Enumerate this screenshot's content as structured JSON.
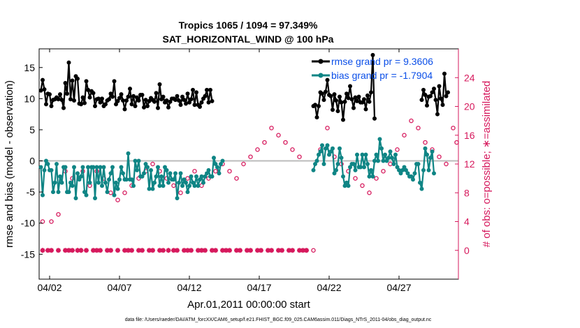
{
  "chart_data": {
    "type": "line",
    "title_line1": "Tropics 1065 / 1094 = 97.349%",
    "title_line2": "SAT_HORIZONTAL_WIND @ 100 hPa",
    "xlabel": "Apr.01,2011 00:00:00 start",
    "ylabel_left": "rmse and bias (model - observation)",
    "ylabel_right": "# of obs: o=possible; ∗=assimilated",
    "footer": "data file: /Users/raeder/DAI/ATM_forcXX/CAM6_setup/f.e21.FHIST_BGC.f09_025.CAM6assim.011/Diags_NTrS_2011-04/obs_diag_output.nc",
    "x_ticks": [
      2,
      7,
      12,
      17,
      22,
      27
    ],
    "x_tick_labels": [
      "04/02",
      "04/07",
      "04/12",
      "04/17",
      "04/22",
      "04/27"
    ],
    "xlim": [
      1.25,
      31.25
    ],
    "ylim_left": [
      -19,
      18
    ],
    "y_ticks_left": [
      -15,
      -10,
      -5,
      0,
      5,
      10,
      15
    ],
    "y_tick_labels_left": [
      "-15",
      "-10",
      "-5",
      "0",
      "5",
      "10",
      "15"
    ],
    "ylim_right": [
      -4,
      28
    ],
    "y_ticks_right": [
      0,
      4,
      8,
      12,
      16,
      20,
      24
    ],
    "y_tick_labels_right": [
      "0",
      "4",
      "8",
      "12",
      "16",
      "20",
      "24"
    ],
    "legend": [
      {
        "label": "rmse grand pr = 9.3606",
        "color": "#000000"
      },
      {
        "label": "bias grand pr = -1.7904",
        "color": "#0f8585"
      }
    ],
    "colors": {
      "rmse": "#000000",
      "bias": "#0f8585",
      "obs": "#d6185c",
      "zero_line": "#bbbbbb"
    },
    "series": [
      {
        "name": "rmse",
        "segments": [
          {
            "start": 1.375,
            "values": [
              11.3,
              13.0,
              11.5,
              9.1,
              10.8,
              10.7,
              8.8,
              9.8,
              9.9,
              10.2,
              9.9,
              10.7,
              9.8,
              8.5,
              12.5,
              10.8,
              15.8,
              9.9,
              12.9,
              9.7,
              13.6,
              13.2,
              9.2,
              9.1,
              10.2,
              9.3,
              12.8,
              11.4,
              10.2,
              11.2,
              10.9,
              8.8,
              9.9,
              10.0,
              9.4,
              10.0,
              8.8,
              9.1,
              9.7,
              9.9,
              10.8,
              10.3,
              12.8,
              9.1,
              9.6,
              10.1,
              10.7,
              9.7,
              8.3,
              9.7,
              10.3,
              11.6,
              9.1,
              10.4,
              8.8,
              10.2,
              9.7,
              10.6,
              10.6,
              8.6,
              9.8,
              8.8,
              9.6,
              10.1,
              9.8,
              9.5,
              10.9,
              8.5,
              12.3,
              9.9,
              10.3,
              9.4,
              9.7,
              8.6,
              9.5,
              10.0,
              10.0,
              9.8,
              10.4,
              9.7,
              9.0,
              10.3,
              9.8,
              9.2,
              10.8,
              9.4,
              9.9,
              11.4,
              9.0,
              11.0,
              9.0,
              8.7,
              9.4,
              10.0,
              10.4,
              11.4,
              9.4,
              11.4,
              9.6
            ]
          },
          {
            "start": 20.875,
            "values": [
              8.8,
              9.0,
              7.0,
              8.8,
              11.0,
              10.8,
              9.8,
              11.1,
              13.0,
              10.6,
              10.4,
              8.2,
              10.7,
              9.7,
              8.0,
              10.3,
              9.4,
              6.6,
              9.5,
              10.8,
              10.1,
              12.0,
              9.9,
              8.5,
              10.2,
              9.6,
              10.3,
              9.4,
              9.4,
              9.9,
              8.3,
              10.5,
              9.5,
              11.0,
              17.0,
              6.8
            ]
          },
          {
            "start": 28.625,
            "values": [
              9.8,
              11.4,
              10.6,
              8.9,
              10.3,
              10.4,
              11.0,
              11.6,
              9.8,
              7.5,
              12.0,
              10.0,
              9.0,
              14.0,
              10.4,
              11.0
            ]
          }
        ]
      },
      {
        "name": "bias",
        "segments": [
          {
            "start": 1.375,
            "values": [
              -1.0,
              -5.5,
              -1.5,
              0.0,
              -0.5,
              -1.5,
              -1.5,
              -5.0,
              -3.5,
              -0.5,
              -5.0,
              -2.5,
              -3.5,
              -1.0,
              -1.0,
              -5.0,
              -5.0,
              -3.5,
              -4.0,
              -1.0,
              -6.0,
              -2.0,
              -3.0,
              -2.5,
              -1.0,
              -5.0,
              -5.5,
              -1.0,
              -3.5,
              -1.0,
              -1.0,
              -6.0,
              -1.0,
              -3.5,
              -1.0,
              -4.0,
              -1.0,
              -3.5,
              -5.0,
              -3.0,
              -2.0,
              -1.0,
              -5.5,
              -3.5,
              -4.5,
              -3.0,
              -1.0,
              -2.0,
              -3.0,
              -3.0,
              1.2,
              -3.0,
              -3.0,
              -4.0,
              0.0,
              -1.5,
              0.0,
              -2.5,
              -2.5,
              -2.0,
              -0.5,
              -1.0,
              -4.5,
              -1.5,
              -4.5,
              -3.5,
              -2.5,
              -1.0,
              -4.0,
              -2.5,
              -4.0,
              -1.0,
              -1.5,
              -3.5,
              -2.0,
              -3.0,
              -3.0,
              -2.0,
              -6.0,
              -3.5,
              -2.0,
              -4.0,
              -3.0,
              -3.5,
              -5.0,
              -4.0,
              -2.5,
              -3.5,
              -4.0,
              -2.5,
              -4.0,
              -3.0,
              -2.5,
              -3.5,
              -2.5,
              -2.0,
              -1.5,
              -2.5,
              -2.5,
              0.5,
              -0.5,
              -1.0,
              -2.0,
              -0.5,
              0.0
            ]
          },
          {
            "start": 20.875,
            "values": [
              -1.5,
              -0.5,
              0.0,
              1.0,
              1.5,
              2.5,
              -0.5,
              2.0,
              2.5,
              1.0,
              1.5,
              2.0,
              -2.0,
              -1.5,
              -0.5,
              2.0,
              0.5,
              -2.5,
              -4.0,
              -3.5,
              -4.0,
              -1.0,
              -0.5,
              -0.5,
              -1.5,
              1.0,
              -1.0,
              -1.0,
              1.0,
              -1.0,
              1.0,
              -0.5,
              -2.5,
              -1.5,
              -2.5,
              0.0,
              1.0,
              0.0,
              3.5,
              2.0,
              0.0,
              1.0,
              0.0,
              0.5,
              1.5,
              0.5,
              -0.5,
              1.0,
              -1.0,
              -1.5,
              -2.0,
              -1.5,
              -1.0,
              -1.5,
              -2.0,
              -2.5,
              -2.5,
              -3.0,
              -2.0,
              -0.5,
              -0.5,
              -3.5,
              -4.5,
              -1.5,
              2.0,
              1.0,
              -1.5,
              0.5,
              1.5,
              -2.0
            ]
          }
        ]
      },
      {
        "name": "obs_assimilated",
        "marker": "*",
        "points": [
          [
            1.5,
            0
          ],
          [
            1.875,
            0
          ],
          [
            2.125,
            0
          ],
          [
            2.625,
            0
          ],
          [
            3.125,
            0
          ],
          [
            3.375,
            0
          ],
          [
            3.625,
            0
          ],
          [
            4.0,
            0
          ],
          [
            4.25,
            0
          ],
          [
            4.625,
            0
          ],
          [
            5.125,
            0
          ],
          [
            5.375,
            0
          ],
          [
            5.625,
            0
          ],
          [
            6.125,
            0
          ],
          [
            6.375,
            0
          ],
          [
            6.875,
            0
          ],
          [
            7.375,
            0
          ],
          [
            7.625,
            0
          ],
          [
            7.875,
            0
          ],
          [
            8.375,
            0
          ],
          [
            8.625,
            0
          ],
          [
            9.125,
            0
          ],
          [
            9.375,
            0
          ],
          [
            9.875,
            0
          ],
          [
            10.125,
            0
          ],
          [
            10.5,
            0
          ],
          [
            10.875,
            0
          ],
          [
            11.125,
            0
          ],
          [
            11.625,
            0
          ],
          [
            11.875,
            0
          ],
          [
            12.125,
            0
          ],
          [
            12.625,
            0
          ],
          [
            12.875,
            0
          ],
          [
            13.125,
            0
          ],
          [
            13.625,
            0
          ],
          [
            13.875,
            0
          ],
          [
            14.375,
            0
          ],
          [
            14.625,
            0
          ],
          [
            14.875,
            0
          ],
          [
            15.375,
            0
          ],
          [
            15.625,
            0
          ],
          [
            16.125,
            0
          ],
          [
            16.375,
            0
          ],
          [
            16.875,
            0
          ],
          [
            17.125,
            0
          ],
          [
            17.625,
            0
          ],
          [
            17.875,
            0
          ],
          [
            18.375,
            0
          ],
          [
            18.625,
            0
          ],
          [
            19.125,
            0
          ],
          [
            19.375,
            0
          ],
          [
            19.875,
            0
          ],
          [
            20.125,
            0
          ],
          [
            20.375,
            0
          ]
        ]
      },
      {
        "name": "obs_possible",
        "marker": "o",
        "points": [
          [
            1.5,
            4
          ],
          [
            2.125,
            4
          ],
          [
            2.625,
            5
          ],
          [
            3.125,
            11
          ],
          [
            3.625,
            10
          ],
          [
            4.375,
            11
          ],
          [
            4.875,
            9
          ],
          [
            5.375,
            11
          ],
          [
            5.875,
            10
          ],
          [
            6.375,
            8
          ],
          [
            6.875,
            7
          ],
          [
            7.375,
            8
          ],
          [
            7.875,
            9
          ],
          [
            8.375,
            10
          ],
          [
            8.875,
            11
          ],
          [
            9.375,
            12
          ],
          [
            9.875,
            11
          ],
          [
            10.375,
            10
          ],
          [
            10.875,
            9
          ],
          [
            11.375,
            8
          ],
          [
            11.875,
            10
          ],
          [
            12.375,
            11
          ],
          [
            12.875,
            9
          ],
          [
            13.375,
            10
          ],
          [
            13.875,
            11
          ],
          [
            14.375,
            12
          ],
          [
            14.875,
            11
          ],
          [
            15.375,
            10
          ],
          [
            15.875,
            12
          ],
          [
            16.375,
            13
          ],
          [
            16.875,
            14
          ],
          [
            17.375,
            15
          ],
          [
            17.875,
            17
          ],
          [
            18.375,
            16
          ],
          [
            18.875,
            15
          ],
          [
            19.375,
            14
          ],
          [
            19.875,
            13
          ],
          [
            20.375,
            0
          ],
          [
            20.875,
            0
          ],
          [
            21.375,
            14
          ],
          [
            21.875,
            17
          ],
          [
            22.375,
            13
          ],
          [
            22.875,
            12
          ],
          [
            23.375,
            11
          ],
          [
            23.875,
            10
          ],
          [
            24.375,
            9
          ],
          [
            24.875,
            8
          ],
          [
            25.375,
            10
          ],
          [
            25.875,
            11
          ],
          [
            26.375,
            12
          ],
          [
            26.875,
            14
          ],
          [
            27.375,
            16
          ],
          [
            27.875,
            18
          ],
          [
            28.375,
            17
          ],
          [
            28.875,
            15
          ],
          [
            29.375,
            14
          ],
          [
            29.875,
            13
          ],
          [
            30.375,
            12
          ],
          [
            30.875,
            17
          ],
          [
            31.125,
            15
          ]
        ]
      }
    ]
  }
}
